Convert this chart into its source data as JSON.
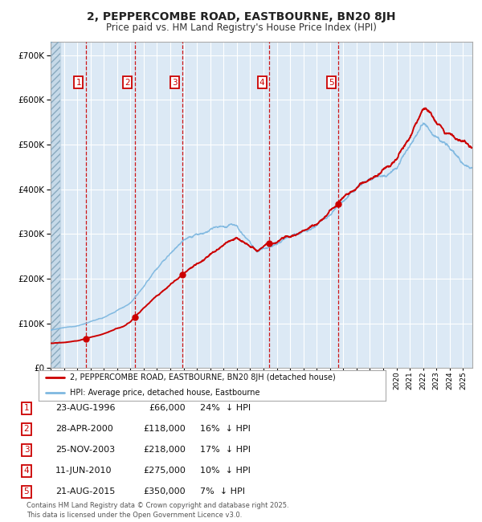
{
  "title": "2, PEPPERCOMBE ROAD, EASTBOURNE, BN20 8JH",
  "subtitle": "Price paid vs. HM Land Registry's House Price Index (HPI)",
  "transactions": [
    {
      "label": "1",
      "date": "1996-08-23",
      "price": 66000,
      "x_year": 1996.648
    },
    {
      "label": "2",
      "date": "2000-04-28",
      "price": 118000,
      "x_year": 2000.323
    },
    {
      "label": "3",
      "date": "2003-11-25",
      "price": 218000,
      "x_year": 2003.899
    },
    {
      "label": "4",
      "date": "2010-06-11",
      "price": 275000,
      "x_year": 2010.443
    },
    {
      "label": "5",
      "date": "2015-08-21",
      "price": 350000,
      "x_year": 2015.638
    }
  ],
  "table_rows": [
    {
      "num": "1",
      "date": "23-AUG-1996",
      "price": "£66,000",
      "pct": "24%",
      "dir": "↓ HPI"
    },
    {
      "num": "2",
      "date": "28-APR-2000",
      "price": "£118,000",
      "pct": "16%",
      "dir": "↓ HPI"
    },
    {
      "num": "3",
      "date": "25-NOV-2003",
      "price": "£218,000",
      "pct": "17%",
      "dir": "↓ HPI"
    },
    {
      "num": "4",
      "date": "11-JUN-2010",
      "price": "£275,000",
      "pct": "10%",
      "dir": "↓ HPI"
    },
    {
      "num": "5",
      "date": "21-AUG-2015",
      "price": "£350,000",
      "pct": "7%",
      "dir": "↓ HPI"
    }
  ],
  "legend_line1": "2, PEPPERCOMBE ROAD, EASTBOURNE, BN20 8JH (detached house)",
  "legend_line2": "HPI: Average price, detached house, Eastbourne",
  "footer1": "Contains HM Land Registry data © Crown copyright and database right 2025.",
  "footer2": "This data is licensed under the Open Government Licence v3.0.",
  "ylim": [
    0,
    730000
  ],
  "xlim_start": 1994.0,
  "xlim_end": 2025.7,
  "bg_color": "#dce9f5",
  "hatch_color": "#b8cfe0",
  "grid_color": "#ffffff",
  "hpi_color": "#7eb8e0",
  "price_color": "#cc0000",
  "dashed_line_color": "#cc0000",
  "marker_color": "#cc0000"
}
